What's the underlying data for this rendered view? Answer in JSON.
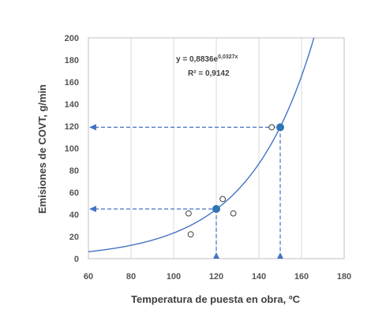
{
  "chart_data": {
    "type": "scatter",
    "xlabel": "Temperatura de puesta en obra, ºC",
    "ylabel": "Emisiones de COVT, g/min",
    "xlim": [
      60,
      180
    ],
    "ylim": [
      0,
      200
    ],
    "xticks": [
      "60",
      "80",
      "100",
      "120",
      "140",
      "160",
      "180"
    ],
    "yticks": [
      "0",
      "20",
      "40",
      "60",
      "80",
      "100",
      "120",
      "140",
      "160",
      "180",
      "200"
    ],
    "grid": "vertical",
    "points": [
      {
        "x": 107,
        "y": 41
      },
      {
        "x": 108,
        "y": 22
      },
      {
        "x": 123,
        "y": 54
      },
      {
        "x": 128,
        "y": 41
      },
      {
        "x": 146,
        "y": 119
      }
    ],
    "fit": {
      "type": "exponential",
      "a": 0.8836,
      "b": 0.0327
    },
    "equation_label": "y = 0,8836e",
    "equation_exponent": "0,0327x",
    "r2_label": "R² = 0,9142",
    "highlight_points": [
      {
        "x": 120,
        "y": 45
      },
      {
        "x": 150,
        "y": 119
      }
    ],
    "colors": {
      "curve": "#4472C4",
      "highlight": "#2E75B6",
      "guide": "#4472C4",
      "grid": "#D9D9D9",
      "axis": "#BFBFBF"
    }
  }
}
